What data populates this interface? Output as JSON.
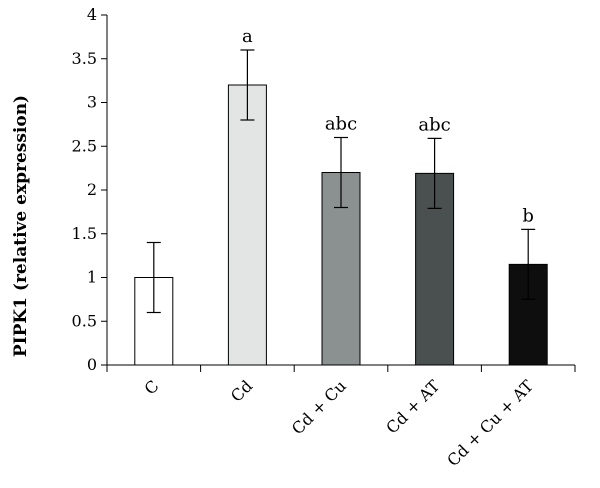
{
  "chart_data": {
    "type": "bar",
    "title": "",
    "xlabel": "",
    "ylabel": "PIPK1 (relative expression)",
    "ylim": [
      0,
      4
    ],
    "yticks": [
      0,
      0.5,
      1,
      1.5,
      2,
      2.5,
      3,
      3.5,
      4
    ],
    "ytick_labels": [
      "0",
      "0.5",
      "1",
      "1.5",
      "2",
      "2.5",
      "3",
      "3.5",
      "4"
    ],
    "grid": false,
    "legend": "none",
    "categories": [
      "C",
      "Cd",
      "Cd + Cu",
      "Cd + AT",
      "Cd + Cu + AT"
    ],
    "values": [
      1.0,
      3.2,
      2.2,
      2.19,
      1.15
    ],
    "errors": [
      0.4,
      0.4,
      0.4,
      0.4,
      0.4
    ],
    "significance": [
      "",
      "a",
      "abc",
      "abc",
      "b"
    ],
    "colors": [
      "#ffffff",
      "#e2e5e3",
      "#8a9190",
      "#4a4f50",
      "#0e0e0e"
    ]
  }
}
